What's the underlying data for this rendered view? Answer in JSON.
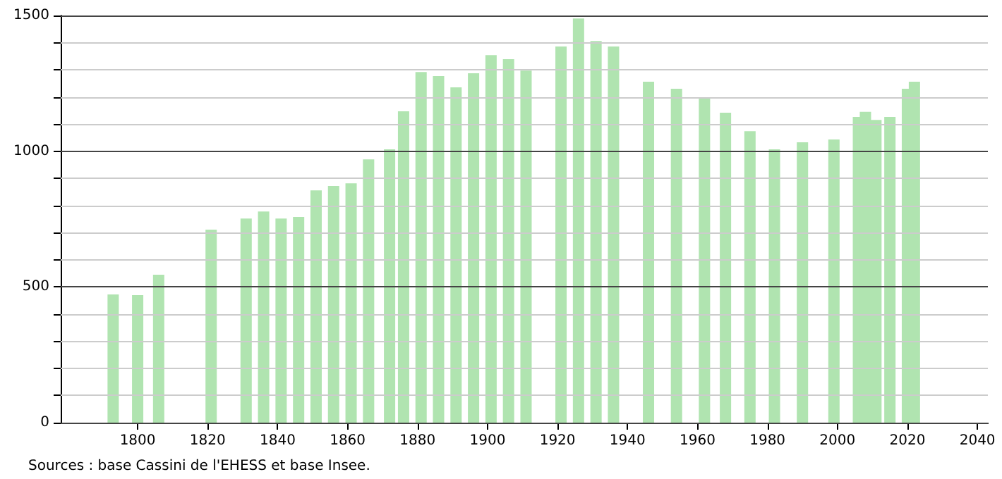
{
  "chart_data": {
    "type": "bar",
    "color": "#b0e4b0",
    "x": [
      1793,
      1800,
      1806,
      1821,
      1831,
      1836,
      1841,
      1846,
      1851,
      1856,
      1861,
      1866,
      1872,
      1876,
      1881,
      1886,
      1891,
      1896,
      1901,
      1906,
      1911,
      1921,
      1926,
      1931,
      1936,
      1946,
      1954,
      1962,
      1968,
      1975,
      1982,
      1990,
      1999,
      2006,
      2008,
      2011,
      2015,
      2020,
      2022
    ],
    "values": [
      472,
      470,
      545,
      711,
      752,
      778,
      752,
      758,
      856,
      872,
      882,
      970,
      1007,
      1147,
      1292,
      1277,
      1235,
      1287,
      1354,
      1339,
      1297,
      1386,
      1489,
      1406,
      1386,
      1256,
      1230,
      1194,
      1142,
      1074,
      1007,
      1033,
      1043,
      1126,
      1145,
      1115,
      1126,
      1230,
      1256
    ],
    "xlim": [
      1778,
      2043
    ],
    "xticks": [
      1800,
      1820,
      1840,
      1860,
      1880,
      1900,
      1920,
      1940,
      1960,
      1980,
      2000,
      2020,
      2040
    ],
    "ylim": [
      0,
      1500
    ],
    "yticks": [
      0,
      {
        "value": 100,
        "label": null
      },
      {
        "value": 200,
        "label": null
      },
      {
        "value": 300,
        "label": null
      },
      {
        "value": 400,
        "label": null
      },
      500,
      {
        "value": 600,
        "label": null
      },
      {
        "value": 700,
        "label": null
      },
      {
        "value": 800,
        "label": null
      },
      {
        "value": 900,
        "label": null
      },
      1000,
      {
        "value": 1100,
        "label": null
      },
      {
        "value": 1200,
        "label": null
      },
      {
        "value": 1300,
        "label": null
      },
      {
        "value": 1400,
        "label": null
      },
      1500
    ],
    "grid": "y",
    "annotations": [
      "Sources : base Cassini de l'EHESS et base Insee."
    ]
  }
}
